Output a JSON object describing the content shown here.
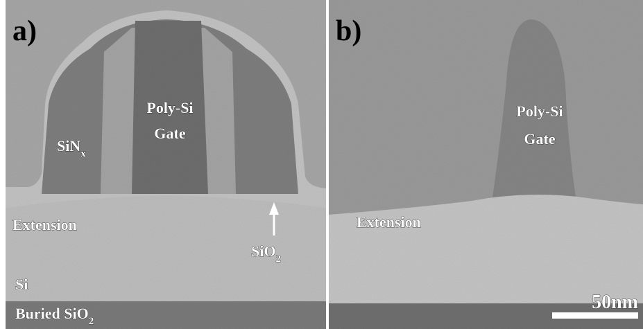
{
  "panel_a": {
    "label": "a)",
    "gate": [
      "Poly-Si",
      "Gate"
    ],
    "spacer": {
      "text": "SiN",
      "sub": "x"
    },
    "extension": "Extension",
    "oxide": {
      "text": "SiO",
      "sub": "2"
    },
    "substrate": "Si",
    "buried": {
      "text": "Buried SiO",
      "sub": "2"
    }
  },
  "panel_b": {
    "label": "b)",
    "gate": [
      "Poly-Si",
      "Gate"
    ],
    "extension": "Extension",
    "scale_bar": "50nm"
  }
}
